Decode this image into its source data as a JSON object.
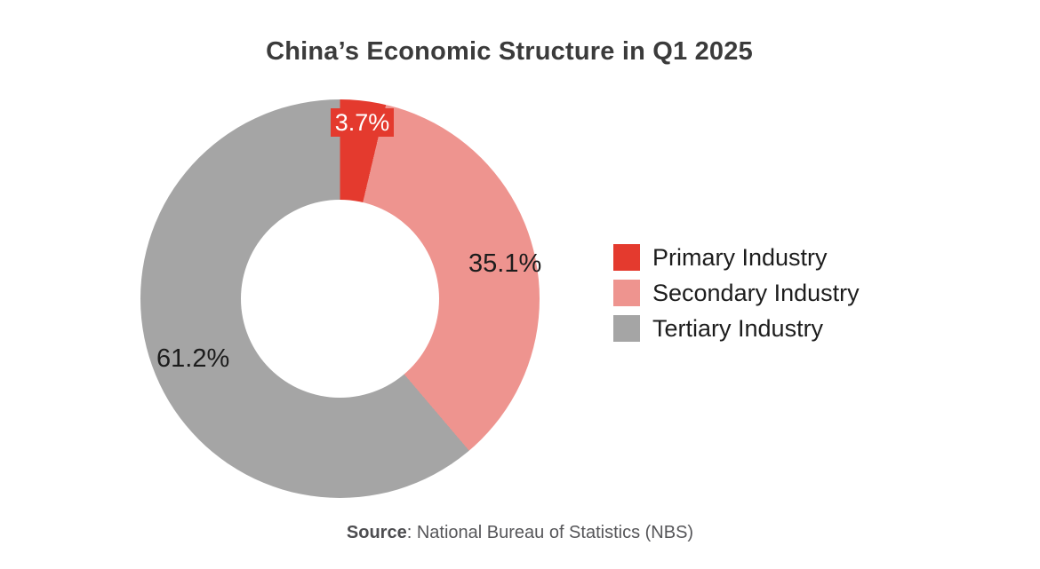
{
  "title": "China’s Economic Structure in Q1 2025",
  "chart_data": {
    "type": "pie",
    "subtype": "donut",
    "title": "China’s Economic Structure in Q1 2025",
    "categories": [
      "Primary Industry",
      "Secondary Industry",
      "Tertiary Industry"
    ],
    "values": [
      3.7,
      35.1,
      61.2
    ],
    "unit": "%",
    "labels": [
      "3.7%",
      "35.1%",
      "61.2%"
    ],
    "colors": [
      "#e43a2e",
      "#ee948f",
      "#a5a5a5"
    ],
    "start_angle_deg": 0,
    "direction": "clockwise",
    "inner_radius_ratio": 0.5,
    "legend_position": "right",
    "source": "Source: National Bureau of Statistics (NBS)"
  },
  "legend": {
    "items": [
      {
        "label": "Primary Industry",
        "color": "#e43a2e"
      },
      {
        "label": "Secondary Industry",
        "color": "#ee948f"
      },
      {
        "label": "Tertiary Industry",
        "color": "#a5a5a5"
      }
    ]
  },
  "source": {
    "prefix": "Source",
    "rest": ": National Bureau of Statistics (NBS)"
  }
}
